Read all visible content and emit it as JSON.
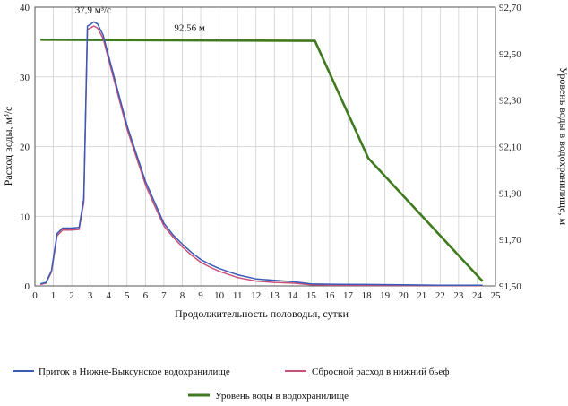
{
  "chart_data": {
    "type": "line",
    "x_range": [
      0,
      25
    ],
    "x_ticks": [
      0,
      1,
      2,
      3,
      4,
      5,
      6,
      7,
      8,
      9,
      10,
      11,
      12,
      13,
      14,
      15,
      16,
      17,
      18,
      19,
      20,
      21,
      22,
      23,
      24,
      25
    ],
    "y_left": {
      "label": "Расход воды, м³/с",
      "range": [
        0,
        40
      ],
      "ticks": [
        "0",
        "10",
        "20",
        "30",
        "40"
      ]
    },
    "y_right": {
      "label": "Уровень воды в водохранилище, м",
      "range": [
        91.5,
        92.7
      ],
      "ticks": [
        "91,50",
        "91,70",
        "91,90",
        "92,10",
        "92,30",
        "92,50",
        "92,70"
      ]
    },
    "xlabel": "Продолжительность половодья, сутки",
    "grid": true,
    "series": [
      {
        "name": "Приток в Нижне-Выксунское водохранилище",
        "color": "#3a5bb5",
        "axis": "left",
        "x": [
          0.3,
          0.6,
          0.9,
          1.2,
          1.5,
          1.8,
          2.0,
          2.4,
          2.65,
          2.85,
          3.0,
          3.2,
          3.4,
          3.7,
          4.0,
          4.5,
          5.0,
          5.5,
          6.0,
          6.5,
          7.0,
          7.5,
          8.0,
          8.5,
          9.0,
          9.5,
          10.0,
          11.0,
          12.0,
          13.0,
          14.0,
          15.0,
          16.0,
          18.0,
          20.0,
          22.0,
          24.3
        ],
        "y": [
          0.3,
          0.5,
          2.2,
          7.5,
          8.3,
          8.3,
          8.3,
          8.4,
          12.5,
          37.3,
          37.5,
          37.9,
          37.6,
          36.0,
          33.0,
          28.0,
          23.0,
          19.0,
          15.0,
          12.0,
          9.0,
          7.3,
          6.0,
          4.8,
          3.8,
          3.1,
          2.5,
          1.6,
          1.0,
          0.8,
          0.6,
          0.3,
          0.25,
          0.2,
          0.15,
          0.1,
          0.1
        ]
      },
      {
        "name": "Сбросной расход в нижний бьеф",
        "color": "#c9507a",
        "axis": "left",
        "x": [
          0.3,
          0.6,
          0.9,
          1.2,
          1.5,
          1.8,
          2.0,
          2.4,
          2.65,
          2.85,
          3.0,
          3.2,
          3.4,
          3.7,
          4.0,
          4.5,
          5.0,
          5.5,
          6.0,
          6.5,
          7.0,
          7.5,
          8.0,
          8.5,
          9.0,
          9.5,
          10.0,
          11.0,
          12.0,
          13.0,
          14.0,
          15.0,
          16.0,
          18.0,
          20.0,
          22.0,
          24.3
        ],
        "y": [
          0.2,
          0.4,
          2.0,
          7.2,
          8.0,
          8.0,
          8.0,
          8.1,
          12.0,
          36.8,
          37.0,
          37.3,
          37.0,
          35.5,
          32.5,
          27.5,
          22.5,
          18.5,
          14.5,
          11.5,
          8.6,
          7.0,
          5.6,
          4.4,
          3.4,
          2.7,
          2.1,
          1.2,
          0.7,
          0.5,
          0.4,
          0.15,
          0.1,
          0.08,
          0.06,
          0.05,
          0.05
        ]
      },
      {
        "name": "Уровень воды в водохранилище",
        "color": "#3f7a1e",
        "axis": "right",
        "x": [
          0.3,
          15.2,
          18.1,
          24.3
        ],
        "y": [
          92.56,
          92.555,
          92.05,
          91.52
        ]
      }
    ],
    "annotations": [
      {
        "text": "37,9 м³/с",
        "x": 3.2,
        "y": 37.9,
        "axis": "left"
      },
      {
        "text": "92,56 м",
        "x": 8.3,
        "y": 92.56,
        "axis": "right"
      }
    ],
    "legend": [
      {
        "label": "Приток в Нижне-Выксунское водохранилище",
        "color": "#3a5bb5"
      },
      {
        "label": "Сбросной расход в нижний бьеф",
        "color": "#c9507a"
      },
      {
        "label": "Уровень воды в водохранилище",
        "color": "#3f7a1e"
      }
    ]
  }
}
